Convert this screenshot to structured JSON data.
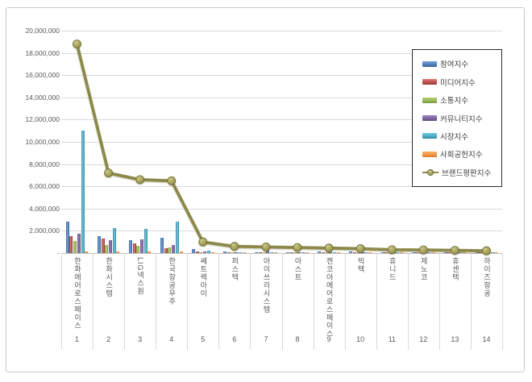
{
  "chart_data": {
    "type": "bar",
    "subtype": "clustered-bars-with-line-overlay",
    "title": "",
    "xlabel": "",
    "ylabel": "",
    "grid": true,
    "legend_position": "top-right",
    "y_axis": {
      "min": 0,
      "max": 20000000,
      "step": 2000000,
      "tick_labels_top_to_bottom": [
        "20,000,000",
        "18,000,000",
        "16,000,000",
        "14,000,000",
        "12,000,000",
        "10,000,000",
        "8,000,000",
        "6,000,000",
        "4,000,000",
        "2,000,000",
        "-"
      ]
    },
    "categories": [
      "한화에어로스페이스",
      "한화시스템",
      "LIG넥스원",
      "한국항공우주",
      "쎄트렉아이",
      "퍼스텍",
      "아이쓰리시스템",
      "아스트",
      "켄코아에어로스페이스",
      "빅텍",
      "휴니드",
      "제노코",
      "휴센텍",
      "하이즈항공"
    ],
    "ranks": [
      "1",
      "2",
      "3",
      "4",
      "5",
      "6",
      "7",
      "8",
      "9",
      "10",
      "11",
      "12",
      "13",
      "14"
    ],
    "series": [
      {
        "key": "participation",
        "name": "참여지수",
        "type": "bar",
        "color": "#4F81BD",
        "color_light": "#7CA6D8",
        "color_dark": "#38608F",
        "values": [
          2800000,
          1500000,
          1130000,
          1350000,
          330000,
          120000,
          100000,
          100000,
          130000,
          120000,
          100000,
          90000,
          80000,
          70000
        ]
      },
      {
        "key": "media",
        "name": "미디어지수",
        "type": "bar",
        "color": "#C0504D",
        "color_light": "#D97E7B",
        "color_dark": "#953B39",
        "values": [
          1550000,
          1270000,
          900000,
          470000,
          150000,
          100000,
          80000,
          70000,
          80000,
          70000,
          60000,
          50000,
          45000,
          40000
        ]
      },
      {
        "key": "communication",
        "name": "소통지수",
        "type": "bar",
        "color": "#9BBB59",
        "color_light": "#B5D178",
        "color_dark": "#77943F",
        "values": [
          1100000,
          700000,
          650000,
          500000,
          100000,
          60000,
          50000,
          40000,
          50000,
          40000,
          35000,
          30000,
          25000,
          25000
        ]
      },
      {
        "key": "community",
        "name": "커뮤니티지수",
        "type": "bar",
        "color": "#8064A2",
        "color_light": "#9D85BC",
        "color_dark": "#614B7D",
        "values": [
          1750000,
          1130000,
          1200000,
          700000,
          150000,
          80000,
          250000,
          60000,
          100000,
          60000,
          50000,
          40000,
          35000,
          30000
        ]
      },
      {
        "key": "market",
        "name": "시장지수",
        "type": "bar",
        "color": "#4BACC6",
        "color_light": "#76C7DC",
        "color_dark": "#35869C",
        "values": [
          11000000,
          2250000,
          2150000,
          2800000,
          200000,
          100000,
          90000,
          80000,
          70000,
          60000,
          50000,
          45000,
          40000,
          35000
        ]
      },
      {
        "key": "social",
        "name": "사회공헌지수",
        "type": "bar",
        "color": "#F79646",
        "color_light": "#FAB169",
        "color_dark": "#D97B2B",
        "values": [
          180000,
          180000,
          150000,
          110000,
          50000,
          40000,
          30000,
          30000,
          30000,
          25000,
          25000,
          20000,
          20000,
          20000
        ]
      },
      {
        "key": "brand",
        "name": "브랜드평판지수",
        "type": "line",
        "color": "#8C894A",
        "marker_fill": "#A6A35B",
        "marker_stroke": "#6B6834",
        "values": [
          18800000,
          7200000,
          6600000,
          6500000,
          1000000,
          600000,
          550000,
          500000,
          450000,
          400000,
          300000,
          280000,
          250000,
          200000
        ]
      }
    ],
    "colors": {
      "gridline": "#d9d9d9",
      "axis_line": "#bdbdbd",
      "axis_text": "#595959",
      "legend_border": "#2b2b2b",
      "frame_border": "#c9c9c9",
      "line_series": "#8C894A"
    }
  }
}
